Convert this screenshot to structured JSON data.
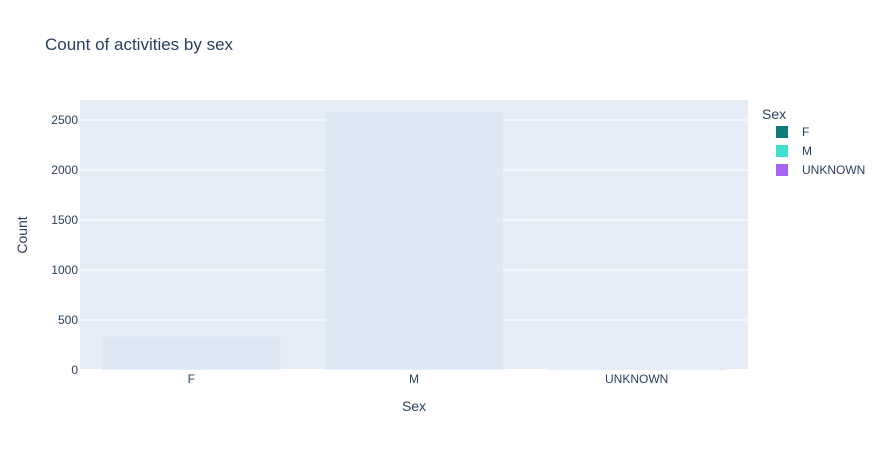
{
  "chart_data": {
    "type": "bar",
    "title": "Count of activities by sex",
    "xlabel": "Sex",
    "ylabel": "Count",
    "categories": [
      "F",
      "M",
      "UNKNOWN"
    ],
    "values": [
      330,
      2580,
      8
    ],
    "ylim": [
      0,
      2700
    ],
    "yticks": [
      0,
      500,
      1000,
      1500,
      2000,
      2500
    ],
    "grid": true,
    "legend": {
      "title": "Sex",
      "placement": "right",
      "items": [
        {
          "name": "F",
          "color": "#0e7c7b"
        },
        {
          "name": "M",
          "color": "#40e0d0"
        },
        {
          "name": "UNKNOWN",
          "color": "#a463f2"
        }
      ]
    },
    "bar_fill": "#dde8f3",
    "plot_bg": "#e5ecf6",
    "text_color": "#2a3f5f"
  }
}
